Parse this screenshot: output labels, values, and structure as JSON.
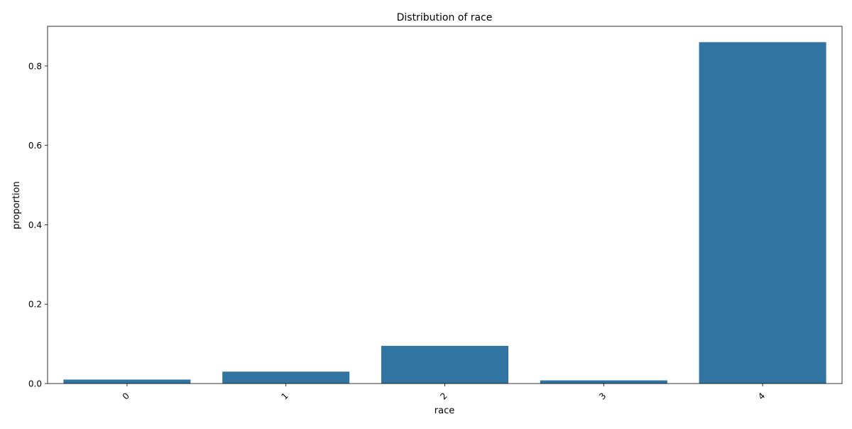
{
  "chart_data": {
    "type": "bar",
    "title": "Distribution of race",
    "xlabel": "race",
    "ylabel": "proportion",
    "categories": [
      "0",
      "1",
      "2",
      "3",
      "4"
    ],
    "values": [
      0.01,
      0.03,
      0.095,
      0.008,
      0.86
    ],
    "ylim": [
      0,
      0.9
    ],
    "yticks": [
      0.0,
      0.2,
      0.4,
      0.6,
      0.8
    ],
    "ytick_labels": [
      "0.0",
      "0.2",
      "0.4",
      "0.6",
      "0.8"
    ],
    "bar_color": "#3274a1",
    "grid": false,
    "legend": "none"
  }
}
